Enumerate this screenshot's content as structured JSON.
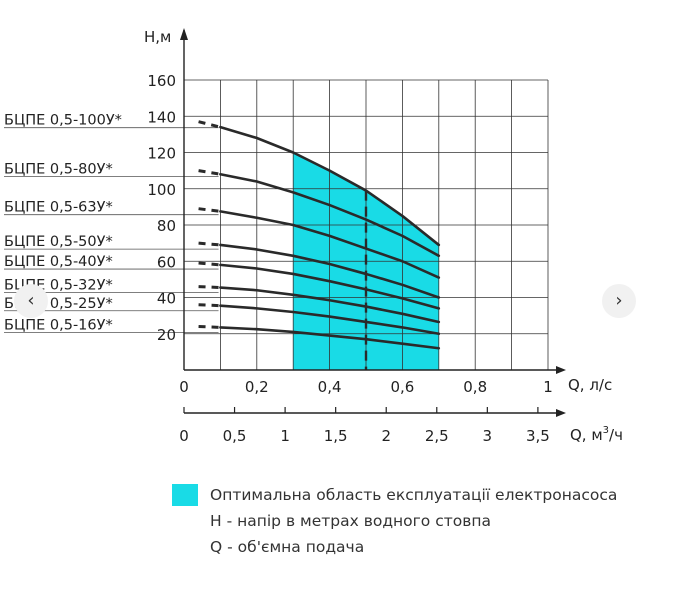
{
  "navigation": {
    "prev_icon": "‹",
    "next_icon": "›"
  },
  "legend": {
    "optimal_area": "Оптимальна область експлуатації електронасоса",
    "h_description": "Н - напір в метрах водного стовпа",
    "q_description": "Q - об'ємна подача"
  },
  "colors": {
    "optimal_fill": "#19dbe6",
    "curve": "#2a2a2a",
    "grid": "#333333"
  },
  "chart_data": {
    "type": "line",
    "y_axis": {
      "label": "Н,м",
      "ticks": [
        20,
        40,
        60,
        80,
        100,
        120,
        140,
        160
      ],
      "range": [
        0,
        160
      ]
    },
    "x_axis_ls": {
      "label": "Q, л/с",
      "ticks": [
        "0",
        "0,2",
        "0,4",
        "0,6",
        "0,8",
        "1"
      ],
      "range": [
        0,
        1
      ]
    },
    "x_axis_m3h": {
      "label": "Q, м",
      "label_sup": "3",
      "label_tail": "/ч",
      "ticks": [
        "0",
        "0,5",
        "1",
        "1,5",
        "2",
        "2,5",
        "3",
        "3,5"
      ],
      "values": [
        0,
        0.5,
        1,
        1.5,
        2,
        2.5,
        3,
        3.5
      ]
    },
    "optimal_range_ls": [
      0.3,
      0.7
    ],
    "marker_q_ls": 0.5,
    "series": [
      {
        "name": "БЦПЕ 0,5-100У*",
        "x": [
          0.04,
          0.1,
          0.2,
          0.3,
          0.4,
          0.5,
          0.6,
          0.7
        ],
        "y": [
          137,
          134,
          128,
          120,
          110,
          99,
          85,
          69
        ]
      },
      {
        "name": "БЦПЕ 0,5-80У*",
        "x": [
          0.04,
          0.1,
          0.2,
          0.3,
          0.4,
          0.5,
          0.6,
          0.7
        ],
        "y": [
          110,
          108,
          104,
          98,
          91,
          83,
          74,
          63
        ]
      },
      {
        "name": "БЦПЕ 0,5-63У*",
        "x": [
          0.04,
          0.1,
          0.2,
          0.3,
          0.4,
          0.5,
          0.6,
          0.7
        ],
        "y": [
          89,
          87.5,
          84,
          80,
          74,
          67,
          60,
          51
        ]
      },
      {
        "name": "БЦПЕ 0,5-50У*",
        "x": [
          0.04,
          0.1,
          0.2,
          0.3,
          0.4,
          0.5,
          0.6,
          0.7
        ],
        "y": [
          70,
          69,
          66.5,
          63,
          58.5,
          53,
          47,
          40
        ]
      },
      {
        "name": "БЦПЕ 0,5-40У*",
        "x": [
          0.04,
          0.1,
          0.2,
          0.3,
          0.4,
          0.5,
          0.6,
          0.7
        ],
        "y": [
          59,
          58,
          56,
          53,
          49,
          44.5,
          39.5,
          34
        ]
      },
      {
        "name": "БЦПЕ 0,5-32У*",
        "x": [
          0.04,
          0.1,
          0.2,
          0.3,
          0.4,
          0.5,
          0.6,
          0.7
        ],
        "y": [
          46,
          45.5,
          44,
          41.5,
          38.5,
          35,
          31,
          26.5
        ]
      },
      {
        "name": "БЦПЕ 0,5-25У*",
        "x": [
          0.04,
          0.1,
          0.2,
          0.3,
          0.4,
          0.5,
          0.6,
          0.7
        ],
        "y": [
          36,
          35.5,
          34,
          32,
          29.5,
          26.5,
          23.5,
          20
        ]
      },
      {
        "name": "БЦПЕ 0,5-16У*",
        "x": [
          0.04,
          0.1,
          0.2,
          0.3,
          0.4,
          0.5,
          0.6,
          0.7
        ],
        "y": [
          24,
          23.5,
          22.5,
          21,
          19,
          17,
          14.5,
          12
        ]
      }
    ]
  }
}
